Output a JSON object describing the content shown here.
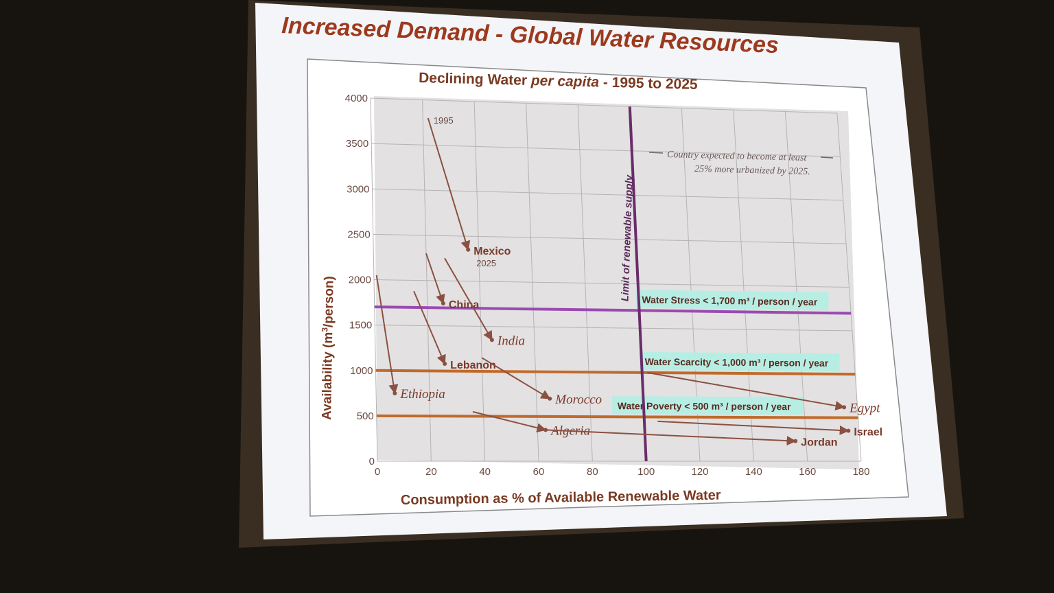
{
  "slide": {
    "title": "Increased Demand - Global Water Resources"
  },
  "chart_data": {
    "type": "scatter",
    "title_parts": [
      "Declining Water ",
      "per capita",
      " - 1995 to 2025"
    ],
    "xlabel": "Consumption as % of Available Renewable Water",
    "ylabel_parts": [
      "Availability (m",
      "3",
      "/person)"
    ],
    "xlim": [
      0,
      180
    ],
    "ylim": [
      0,
      4000
    ],
    "x_ticks": [
      "0",
      "20",
      "40",
      "60",
      "80",
      "100",
      "120",
      "140",
      "160",
      "180"
    ],
    "y_ticks": [
      "0",
      "500",
      "1000",
      "1500",
      "2000",
      "2500",
      "3000",
      "3500",
      "4000"
    ],
    "year_start_label": "1995",
    "year_end_label": "2025",
    "note_lines": [
      "Country expected to become at least",
      "25% more urbanized by 2025."
    ],
    "limit_line": {
      "x": 100,
      "label": "Limit of renewable supply"
    },
    "thresholds": [
      {
        "y": 1700,
        "label": "Water Stress < 1,700 m³ / person / year",
        "color": "#9a4ab0"
      },
      {
        "y": 1000,
        "label": "Water Scarcity < 1,000 m³ / person / year",
        "color": "#c06a2a"
      },
      {
        "y": 500,
        "label": "Water Poverty < 500 m³ / person / year",
        "color": "#c06a2a"
      }
    ],
    "countries": [
      {
        "name": "Mexico",
        "from": [
          22,
          3800
        ],
        "to": [
          36,
          2350
        ],
        "urbanized": false
      },
      {
        "name": "China",
        "from": [
          20,
          2300
        ],
        "to": [
          26,
          1750
        ],
        "urbanized": false
      },
      {
        "name": "India",
        "from": [
          27,
          2250
        ],
        "to": [
          44,
          1350
        ],
        "urbanized": true
      },
      {
        "name": "Lebanon",
        "from": [
          15,
          1880
        ],
        "to": [
          26,
          1080
        ],
        "urbanized": false
      },
      {
        "name": "Ethiopia",
        "from": [
          1,
          2050
        ],
        "to": [
          7,
          750
        ],
        "urbanized": true
      },
      {
        "name": "Morocco",
        "from": [
          40,
          1150
        ],
        "to": [
          65,
          700
        ],
        "urbanized": true
      },
      {
        "name": "Algeria",
        "from": [
          36,
          550
        ],
        "to": [
          63,
          350
        ],
        "urbanized": true
      },
      {
        "name": "Egypt",
        "from": [
          102,
          1000
        ],
        "to": [
          175,
          620
        ],
        "urbanized": true
      },
      {
        "name": "Israel",
        "from": [
          105,
          450
        ],
        "to": [
          176,
          350
        ],
        "urbanized": false
      },
      {
        "name": "Jordan",
        "from": [
          63,
          350
        ],
        "to": [
          156,
          230
        ],
        "urbanized": false
      }
    ]
  }
}
